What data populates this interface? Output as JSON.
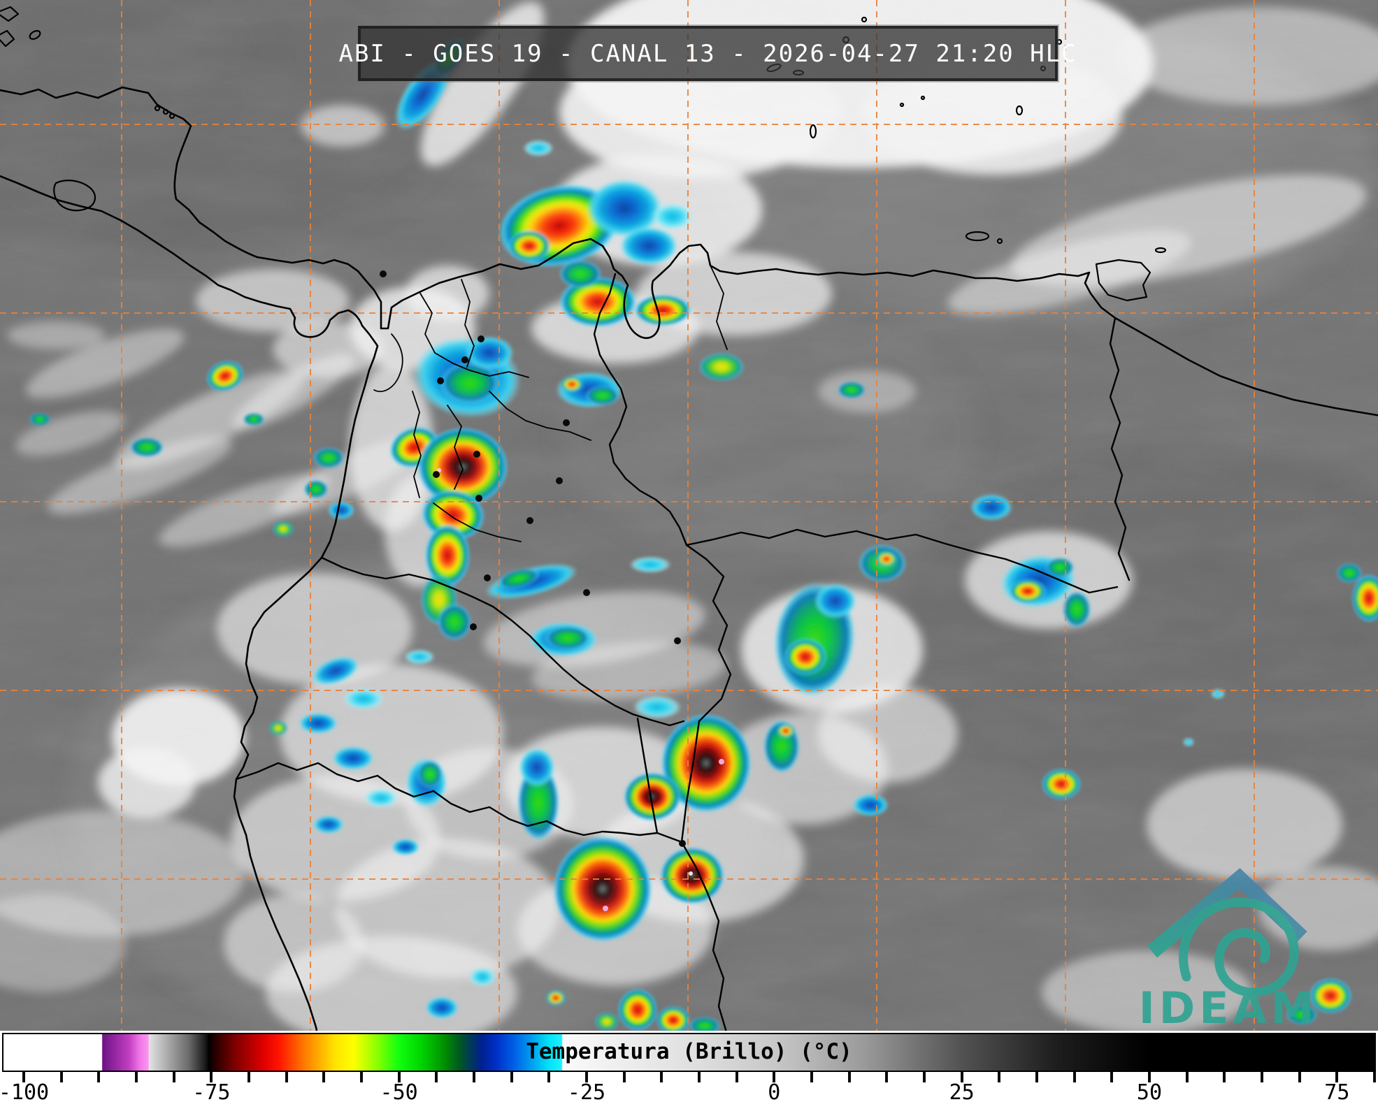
{
  "title": {
    "text": "ABI - GOES 19 - CANAL 13 - 2026-04-27 21:20 HLC"
  },
  "colorbar": {
    "label": "Temperatura (Brillo) (°C)",
    "unit": "°C",
    "domain": {
      "min": -102.7,
      "max": 80
    },
    "tick_min": -100,
    "tick_max": 80,
    "tick_step": 5,
    "label_values": [
      -100,
      -75,
      -50,
      -25,
      0,
      25,
      50,
      75
    ],
    "stops": [
      {
        "t": -102.7,
        "color": "#ffffff"
      },
      {
        "t": -89.6,
        "color": "#ffffff"
      },
      {
        "t": -89.5,
        "color": "#6d1284"
      },
      {
        "t": -86.0,
        "color": "#c03ec0"
      },
      {
        "t": -84.5,
        "color": "#f077e8"
      },
      {
        "t": -83.4,
        "color": "#fc96f0"
      },
      {
        "t": -83.3,
        "color": "#e2e2e2"
      },
      {
        "t": -78.0,
        "color": "#6a6a6a"
      },
      {
        "t": -75.8,
        "color": "#1a1a1a"
      },
      {
        "t": -75.3,
        "color": "#000000"
      },
      {
        "t": -74.8,
        "color": "#1c0000"
      },
      {
        "t": -72.0,
        "color": "#7a0000"
      },
      {
        "t": -68.0,
        "color": "#e00000"
      },
      {
        "t": -66.0,
        "color": "#ff1400"
      },
      {
        "t": -62.5,
        "color": "#ff7d00"
      },
      {
        "t": -58.5,
        "color": "#ffe400"
      },
      {
        "t": -56.0,
        "color": "#fdff00"
      },
      {
        "t": -53.0,
        "color": "#8eff00"
      },
      {
        "t": -50.0,
        "color": "#10ff10"
      },
      {
        "t": -47.0,
        "color": "#00d400"
      },
      {
        "t": -44.0,
        "color": "#009000"
      },
      {
        "t": -42.0,
        "color": "#005a20"
      },
      {
        "t": -40.5,
        "color": "#003a55"
      },
      {
        "t": -39.0,
        "color": "#002090"
      },
      {
        "t": -37.0,
        "color": "#0030c8"
      },
      {
        "t": -34.5,
        "color": "#0063e8"
      },
      {
        "t": -32.0,
        "color": "#00a8f0"
      },
      {
        "t": -30.0,
        "color": "#00e4f8"
      },
      {
        "t": -28.3,
        "color": "#20f0fc"
      },
      {
        "t": -28.2,
        "color": "#fafafa"
      },
      {
        "t": -10.0,
        "color": "#dedede"
      },
      {
        "t": 0.0,
        "color": "#c8c8c8"
      },
      {
        "t": 12.0,
        "color": "#9a9a9a"
      },
      {
        "t": 25.0,
        "color": "#525252"
      },
      {
        "t": 38.0,
        "color": "#1c1c1c"
      },
      {
        "t": 48.0,
        "color": "#040404"
      },
      {
        "t": 50.0,
        "color": "#000000"
      },
      {
        "t": 80.0,
        "color": "#000000"
      }
    ]
  },
  "graticule": {
    "color": "#e8823c",
    "x_lines": [
      174,
      444,
      714,
      984,
      1254,
      1524,
      1794
    ],
    "y_lines": [
      178,
      448,
      718,
      988,
      1258,
      1528
    ]
  },
  "logo": {
    "text": "IDEAM",
    "color": "#2fa392"
  },
  "map": {
    "background": "#6f6f6f",
    "border_color": "#000000"
  }
}
